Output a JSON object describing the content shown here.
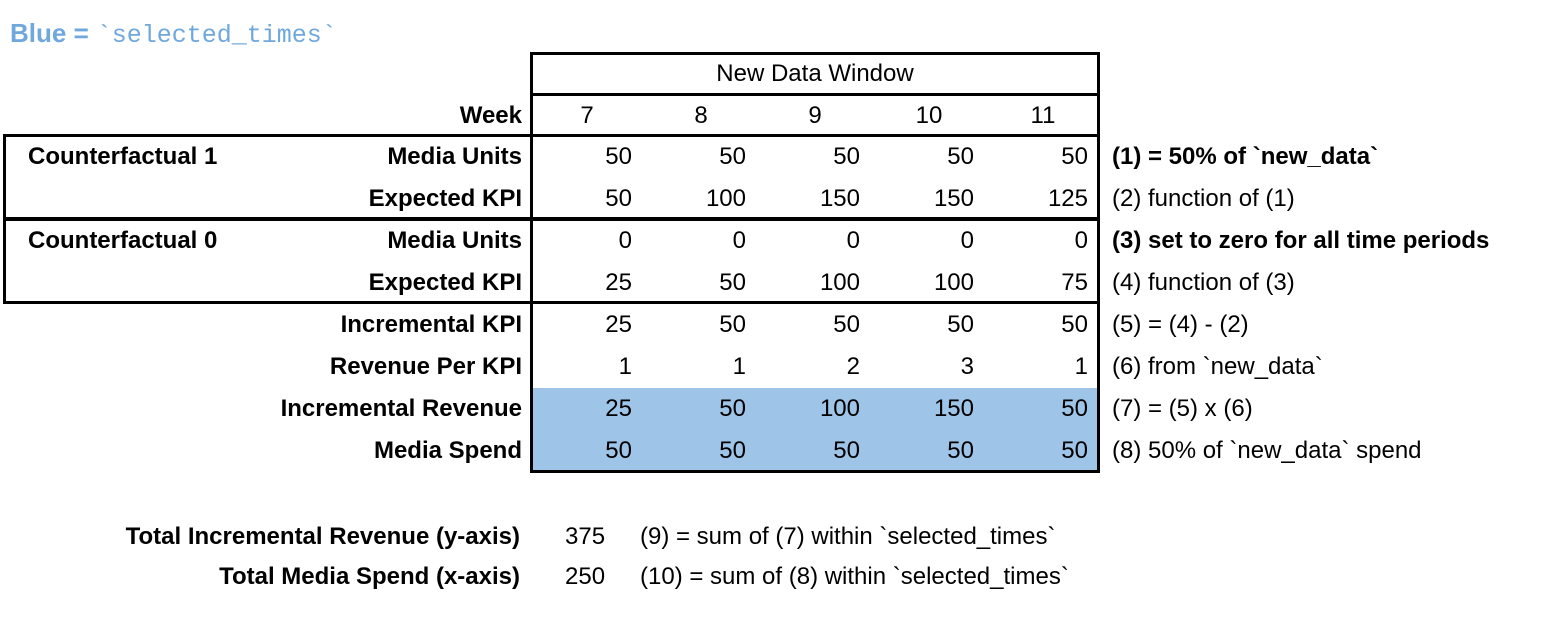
{
  "legend": {
    "prefix": "Blue =",
    "code": "`selected_times`"
  },
  "colors": {
    "highlight": "#9EC4E8",
    "legend_text": "#6FA8DC",
    "border": "#000000",
    "background": "#ffffff"
  },
  "chart_data": {
    "type": "table",
    "title": "New Data Window",
    "week_label": "Week",
    "weeks": [
      7,
      8,
      9,
      10,
      11
    ],
    "rows": [
      {
        "group": "Counterfactual 1",
        "label": "Media Units",
        "values": [
          50,
          50,
          50,
          50,
          50
        ],
        "note": "(1) = 50% of `new_data`",
        "note_bold": true,
        "highlight": false
      },
      {
        "group": "",
        "label": "Expected KPI",
        "values": [
          50,
          100,
          150,
          150,
          125
        ],
        "note": "(2) function of (1)",
        "note_bold": false,
        "highlight": false
      },
      {
        "group": "Counterfactual 0",
        "label": "Media Units",
        "values": [
          0,
          0,
          0,
          0,
          0
        ],
        "note": "(3) set to zero for all time periods",
        "note_bold": true,
        "highlight": false
      },
      {
        "group": "",
        "label": "Expected KPI",
        "values": [
          25,
          50,
          100,
          100,
          75
        ],
        "note": "(4) function of (3)",
        "note_bold": false,
        "highlight": false
      },
      {
        "group": "",
        "label": "Incremental KPI",
        "values": [
          25,
          50,
          50,
          50,
          50
        ],
        "note": "(5) = (4) - (2)",
        "note_bold": false,
        "highlight": false
      },
      {
        "group": "",
        "label": "Revenue Per KPI",
        "values": [
          1,
          1,
          2,
          3,
          1
        ],
        "note": "(6) from `new_data`",
        "note_bold": false,
        "highlight": false
      },
      {
        "group": "",
        "label": "Incremental Revenue",
        "values": [
          25,
          50,
          100,
          150,
          50
        ],
        "note": "(7) = (5) x (6)",
        "note_bold": false,
        "highlight": true
      },
      {
        "group": "",
        "label": "Media Spend",
        "values": [
          50,
          50,
          50,
          50,
          50
        ],
        "note": "(8) 50% of `new_data` spend",
        "note_bold": false,
        "highlight": true
      }
    ]
  },
  "totals": [
    {
      "label": "Total Incremental Revenue (y-axis)",
      "value": 375,
      "note": "(9) = sum of (7) within `selected_times`"
    },
    {
      "label": "Total Media Spend (x-axis)",
      "value": 250,
      "note": "(10) = sum of (8) within `selected_times`"
    }
  ]
}
